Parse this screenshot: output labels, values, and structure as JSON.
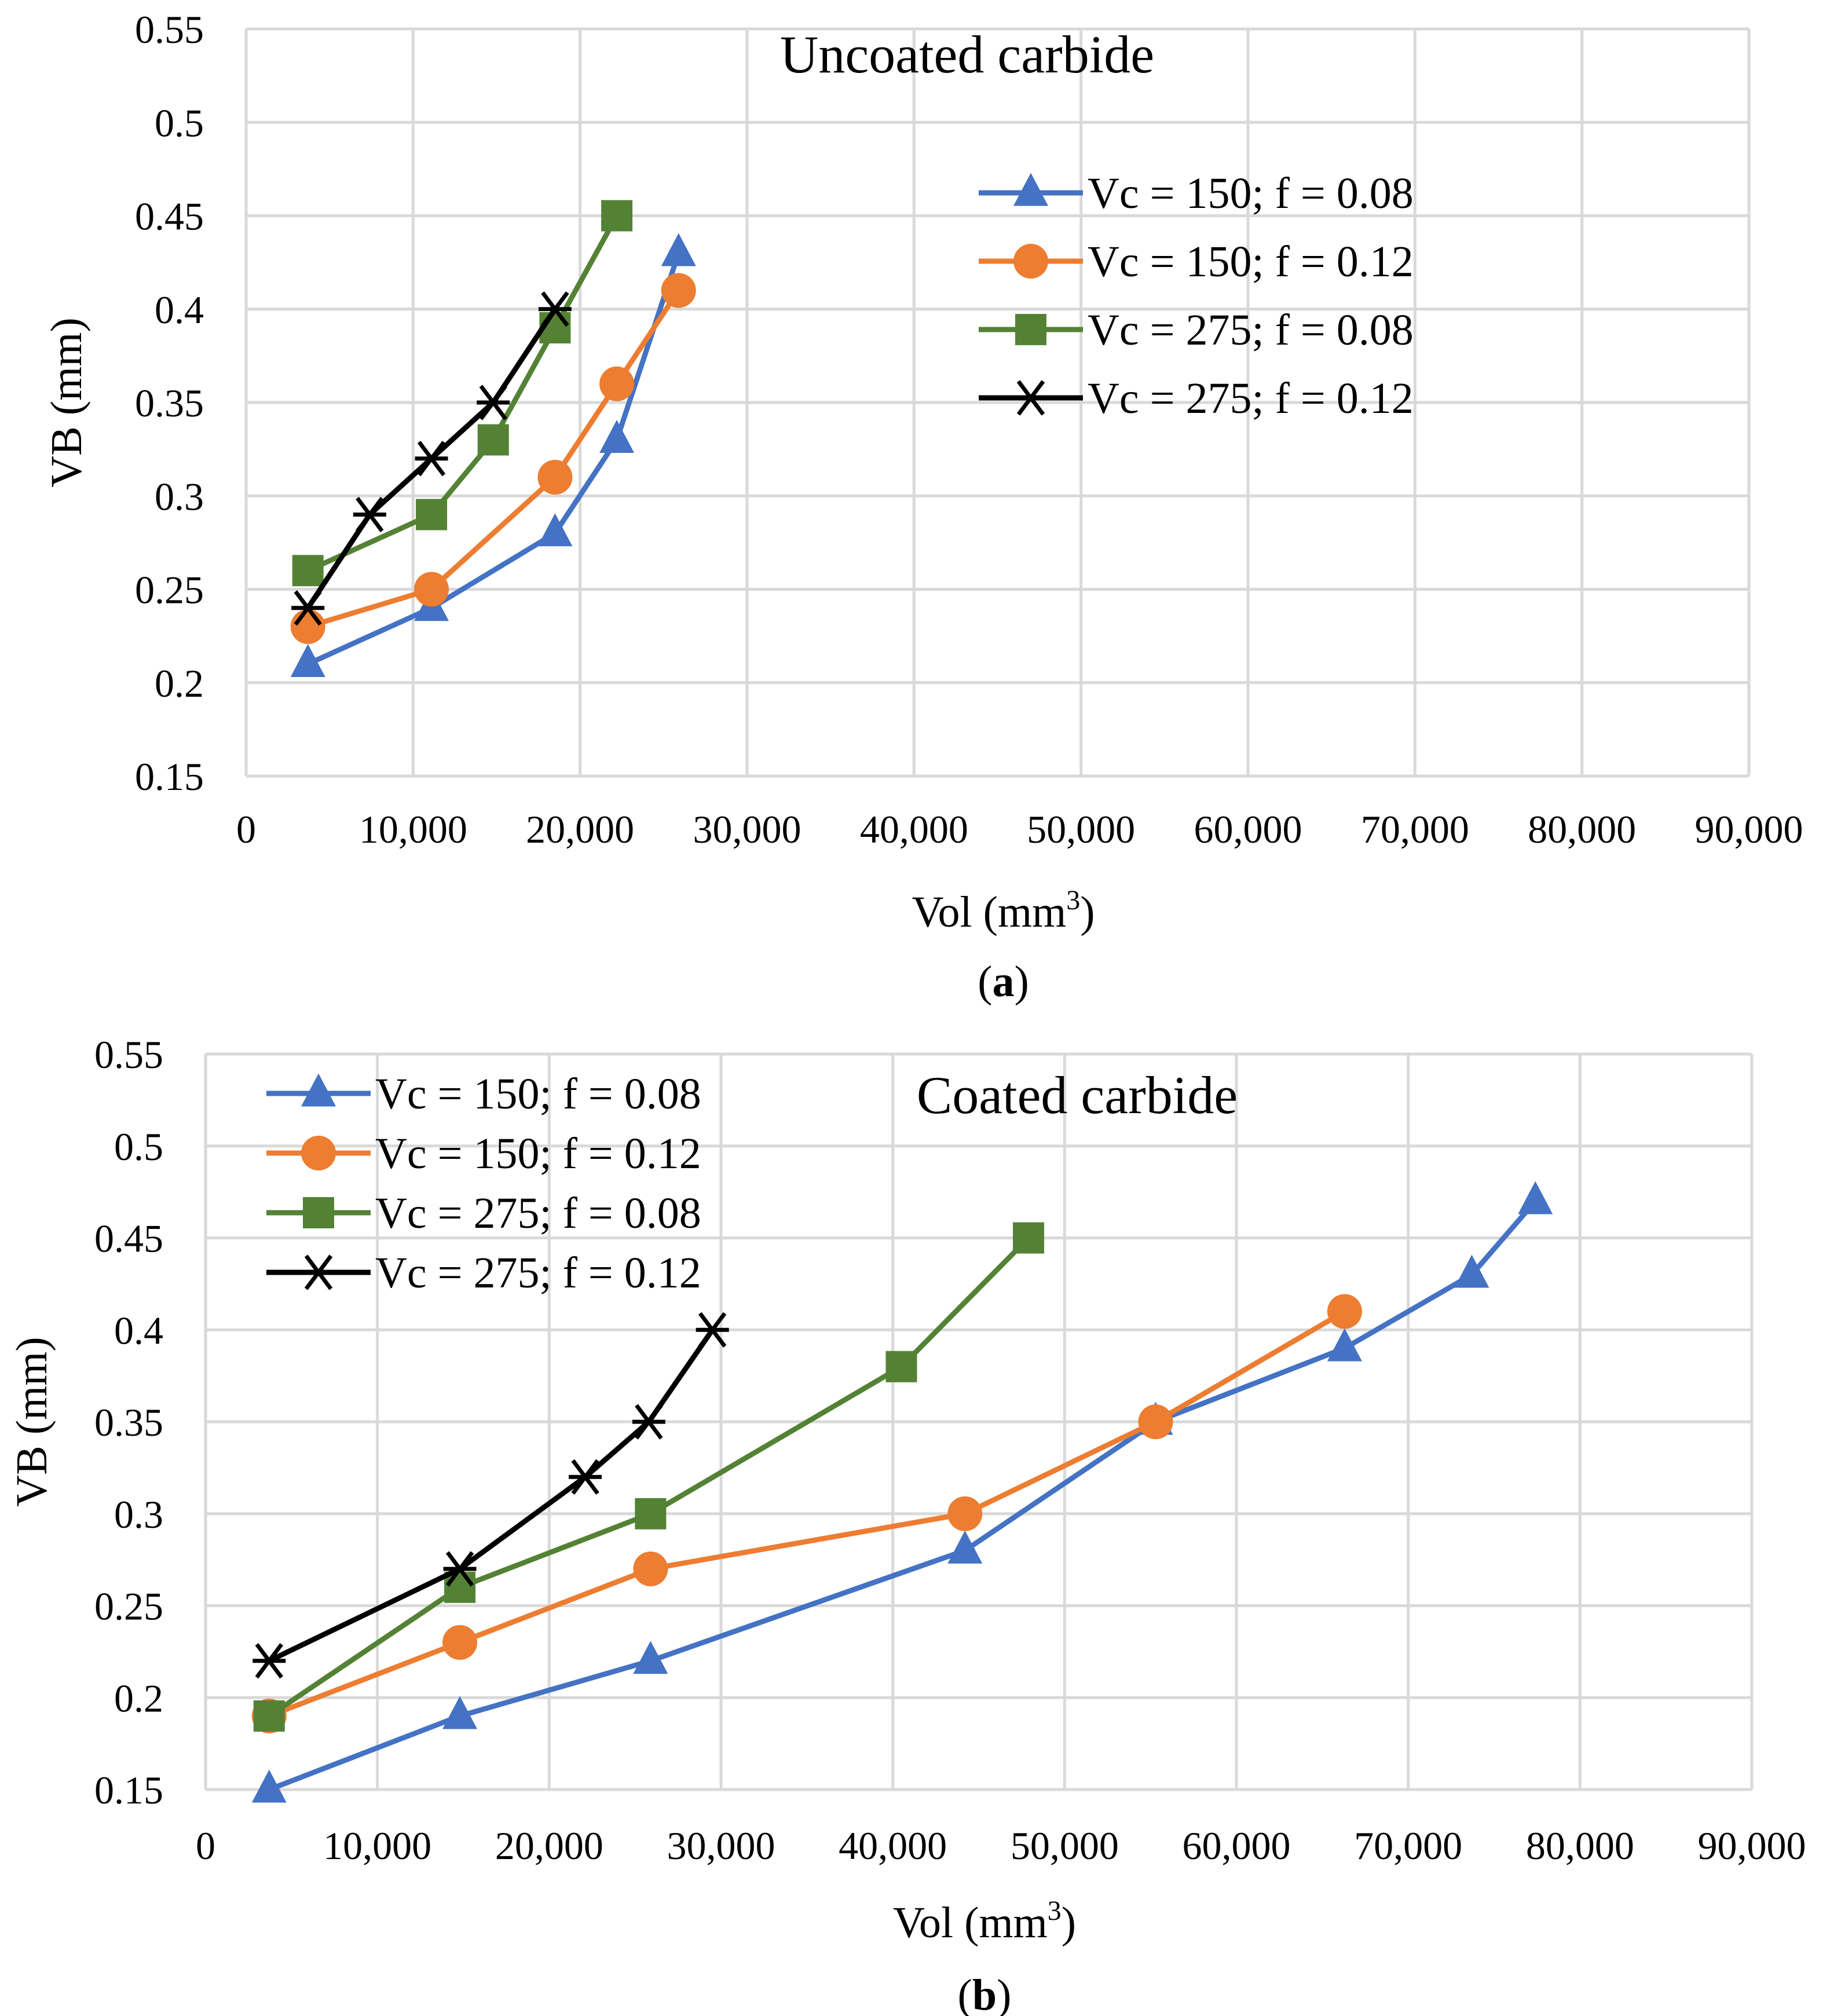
{
  "chart_data": [
    {
      "type": "line",
      "title": "Uncoated carbide",
      "xlabel": "Vol (mm",
      "xlabel_sup": "3",
      "xlabel_end": ")",
      "ylabel": "VB (mm)",
      "xlim": [
        0,
        90000
      ],
      "ylim": [
        0.15,
        0.55
      ],
      "xticks": [
        0,
        10000,
        20000,
        30000,
        40000,
        50000,
        60000,
        70000,
        80000,
        90000
      ],
      "xtick_labels": [
        "0",
        "10,000",
        "20,000",
        "30,000",
        "40,000",
        "50,000",
        "60,000",
        "70,000",
        "80,000",
        "90,000"
      ],
      "yticks": [
        0.15,
        0.2,
        0.25,
        0.3,
        0.35,
        0.4,
        0.45,
        0.5,
        0.55
      ],
      "ytick_labels": [
        "0.15",
        "0.2",
        "0.25",
        "0.3",
        "0.35",
        "0.4",
        "0.45",
        "0.5",
        "0.55"
      ],
      "caption_open": "(",
      "caption_letter": "a",
      "caption_close": ")",
      "legend_position": "top-right",
      "series": [
        {
          "name": "Vc = 150; f = 0.08",
          "color": "#4472c4",
          "marker": "triangle",
          "x": [
            3700,
            11100,
            18500,
            22200,
            25900
          ],
          "y": [
            0.21,
            0.24,
            0.28,
            0.33,
            0.43
          ]
        },
        {
          "name": "Vc = 150; f = 0.12",
          "color": "#ed7d31",
          "marker": "circle",
          "x": [
            3700,
            11100,
            18500,
            22200,
            25900
          ],
          "y": [
            0.23,
            0.25,
            0.31,
            0.36,
            0.41
          ]
        },
        {
          "name": "Vc = 275; f = 0.08",
          "color": "#548235",
          "marker": "square",
          "x": [
            3700,
            11100,
            14800,
            18500,
            22200
          ],
          "y": [
            0.26,
            0.29,
            0.33,
            0.39,
            0.45
          ]
        },
        {
          "name": "Vc = 275; f = 0.12",
          "color": "#000000",
          "marker": "star",
          "x": [
            3700,
            7400,
            11100,
            14800,
            18500
          ],
          "y": [
            0.24,
            0.29,
            0.32,
            0.35,
            0.4
          ]
        }
      ]
    },
    {
      "type": "line",
      "title": "Coated carbide",
      "xlabel": "Vol (mm",
      "xlabel_sup": "3",
      "xlabel_end": ")",
      "ylabel": "VB (mm)",
      "xlim": [
        0,
        90000
      ],
      "ylim": [
        0.15,
        0.55
      ],
      "xticks": [
        0,
        10000,
        20000,
        30000,
        40000,
        50000,
        60000,
        70000,
        80000,
        90000
      ],
      "xtick_labels": [
        "0",
        "10,000",
        "20,000",
        "30,000",
        "40,000",
        "50,000",
        "60,000",
        "70,000",
        "80,000",
        "90,000"
      ],
      "yticks": [
        0.15,
        0.2,
        0.25,
        0.3,
        0.35,
        0.4,
        0.45,
        0.5,
        0.55
      ],
      "ytick_labels": [
        "0.15",
        "0.2",
        "0.25",
        "0.3",
        "0.35",
        "0.4",
        "0.45",
        "0.5",
        "0.55"
      ],
      "caption_open": "(",
      "caption_letter": "b",
      "caption_close": ")",
      "legend_position": "top-left",
      "series": [
        {
          "name": "Vc = 150; f = 0.08",
          "color": "#4472c4",
          "marker": "triangle",
          "x": [
            3700,
            14800,
            25900,
            44200,
            55300,
            66300,
            73700,
            77400
          ],
          "y": [
            0.15,
            0.19,
            0.22,
            0.28,
            0.35,
            0.39,
            0.43,
            0.47
          ]
        },
        {
          "name": "Vc = 150; f = 0.12",
          "color": "#ed7d31",
          "marker": "circle",
          "x": [
            3700,
            14800,
            25900,
            44200,
            55300,
            66300
          ],
          "y": [
            0.19,
            0.23,
            0.27,
            0.3,
            0.35,
            0.41
          ]
        },
        {
          "name": "Vc = 275; f = 0.08",
          "color": "#548235",
          "marker": "square",
          "x": [
            3700,
            14800,
            25900,
            40500,
            47900
          ],
          "y": [
            0.19,
            0.26,
            0.3,
            0.38,
            0.45
          ]
        },
        {
          "name": "Vc = 275; f = 0.12",
          "color": "#000000",
          "marker": "star",
          "x": [
            3700,
            14800,
            22100,
            25800,
            29500
          ],
          "y": [
            0.22,
            0.27,
            0.32,
            0.35,
            0.4
          ]
        }
      ]
    }
  ]
}
